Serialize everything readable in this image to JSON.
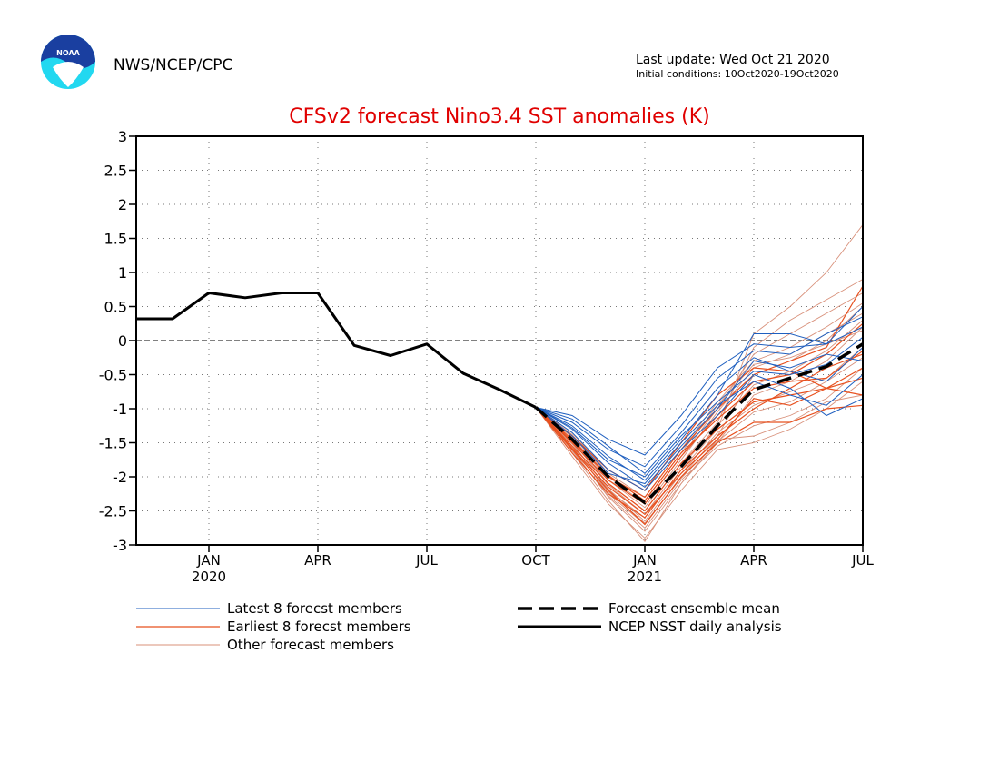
{
  "header": {
    "agency": "NWS/NCEP/CPC",
    "logo_text": "NOAA",
    "last_update": "Last update: Wed Oct 21 2020",
    "initial_conditions": "Initial conditions: 10Oct2020-19Oct2020"
  },
  "colors": {
    "title": "#e00000",
    "latest": "#1f5fbf",
    "earliest": "#e8501e",
    "other": "#d8907a",
    "observed": "#000000",
    "logo_blue": "#1a3fa0",
    "logo_cyan": "#22d8f0"
  },
  "chart_data": {
    "type": "line",
    "title": "CFSv2 forecast Nino3.4 SST anomalies (K)",
    "ylim": [
      -3,
      3
    ],
    "yticks": [
      3,
      2.5,
      2,
      1.5,
      1,
      0.5,
      0,
      -0.5,
      -1,
      -1.5,
      -2,
      -2.5,
      -3
    ],
    "ytick_labels": [
      "3",
      "2.5",
      "2",
      "1.5",
      "1",
      "0.5",
      "0",
      "-0.5",
      "-1",
      "-1.5",
      "-2",
      "-2.5",
      "-3"
    ],
    "xlim": [
      "2019-11",
      "2021-07"
    ],
    "x_tick_labels": [
      {
        "month": "2020-01",
        "label": "JAN",
        "year": "2020"
      },
      {
        "month": "2020-04",
        "label": "APR",
        "year": ""
      },
      {
        "month": "2020-07",
        "label": "JUL",
        "year": ""
      },
      {
        "month": "2020-10",
        "label": "OCT",
        "year": ""
      },
      {
        "month": "2021-01",
        "label": "JAN",
        "year": "2021"
      },
      {
        "month": "2021-04",
        "label": "APR",
        "year": ""
      },
      {
        "month": "2021-07",
        "label": "JUL",
        "year": ""
      }
    ],
    "grid": true,
    "zero_line": true,
    "legend": [
      {
        "label": "Latest 8 forecst members",
        "style": "latest"
      },
      {
        "label": "Earliest 8 forecst members",
        "style": "earliest"
      },
      {
        "label": "Other forecast members",
        "style": "other"
      },
      {
        "label": "Forecast ensemble mean",
        "style": "mean"
      },
      {
        "label": "NCEP NSST daily analysis",
        "style": "observed"
      }
    ],
    "forecast_months": [
      "2020-10",
      "2020-11",
      "2020-12",
      "2021-01",
      "2021-02",
      "2021-03",
      "2021-04",
      "2021-05",
      "2021-06",
      "2021-07"
    ],
    "series": [
      {
        "name": "NCEP NSST daily analysis",
        "group": "observed",
        "x": [
          "2019-11",
          "2019-12",
          "2020-01",
          "2020-02",
          "2020-03",
          "2020-04",
          "2020-05",
          "2020-06",
          "2020-07",
          "2020-08",
          "2020-09",
          "2020-10"
        ],
        "values": [
          0.32,
          0.32,
          0.7,
          0.63,
          0.7,
          0.7,
          -0.07,
          -0.22,
          -0.05,
          -0.48,
          -0.72,
          -0.98
        ]
      },
      {
        "name": "Forecast ensemble mean",
        "group": "mean",
        "values": [
          -0.98,
          -1.45,
          -2.0,
          -2.38,
          -1.85,
          -1.25,
          -0.72,
          -0.55,
          -0.38,
          -0.05
        ]
      },
      {
        "group": "latest",
        "values": [
          -0.98,
          -1.1,
          -1.45,
          -1.68,
          -1.1,
          -0.4,
          -0.05,
          -0.1,
          -0.05,
          0.5
        ]
      },
      {
        "group": "latest",
        "values": [
          -0.98,
          -1.2,
          -1.6,
          -1.85,
          -1.25,
          -0.55,
          -0.15,
          -0.2,
          0.1,
          0.35
        ]
      },
      {
        "group": "latest",
        "values": [
          -0.98,
          -1.25,
          -1.7,
          -2.05,
          -1.45,
          -0.8,
          0.1,
          0.1,
          -0.05,
          0.2
        ]
      },
      {
        "group": "latest",
        "values": [
          -0.98,
          -1.3,
          -1.8,
          -2.15,
          -1.55,
          -1.0,
          -0.3,
          -0.4,
          -0.2,
          -0.3
        ]
      },
      {
        "group": "latest",
        "values": [
          -0.98,
          -1.35,
          -1.9,
          -2.2,
          -1.6,
          -1.1,
          -0.5,
          -0.7,
          -1.1,
          -0.85
        ]
      },
      {
        "group": "latest",
        "values": [
          -0.98,
          -1.15,
          -1.55,
          -1.95,
          -1.35,
          -0.7,
          -0.25,
          -0.45,
          -0.6,
          -0.1
        ]
      },
      {
        "group": "latest",
        "values": [
          -0.98,
          -1.4,
          -1.95,
          -2.1,
          -1.5,
          -0.95,
          -0.6,
          -0.8,
          -0.95,
          -0.5
        ]
      },
      {
        "group": "latest",
        "values": [
          -0.98,
          -1.28,
          -1.75,
          -2.0,
          -1.4,
          -0.9,
          -0.45,
          -0.5,
          -0.35,
          0.05
        ]
      },
      {
        "group": "earliest",
        "values": [
          -0.98,
          -1.6,
          -2.2,
          -2.7,
          -2.0,
          -1.5,
          -1.2,
          -1.2,
          -1.0,
          -0.95
        ]
      },
      {
        "group": "earliest",
        "values": [
          -0.98,
          -1.55,
          -2.1,
          -2.5,
          -1.8,
          -1.3,
          -0.9,
          -0.8,
          -0.7,
          -0.8
        ]
      },
      {
        "group": "earliest",
        "values": [
          -0.98,
          -1.5,
          -2.05,
          -2.4,
          -1.7,
          -1.1,
          -0.6,
          -0.5,
          -0.2,
          0.25
        ]
      },
      {
        "group": "earliest",
        "values": [
          -0.98,
          -1.45,
          -2.0,
          -2.3,
          -1.6,
          -1.0,
          -0.5,
          -0.3,
          -0.1,
          0.8
        ]
      },
      {
        "group": "earliest",
        "values": [
          -0.98,
          -1.65,
          -2.25,
          -2.6,
          -1.9,
          -1.4,
          -1.0,
          -0.7,
          -0.4,
          -0.2
        ]
      },
      {
        "group": "earliest",
        "values": [
          -0.98,
          -1.4,
          -1.9,
          -2.2,
          -1.5,
          -0.8,
          -0.4,
          -0.45,
          -0.7,
          -0.55
        ]
      },
      {
        "group": "earliest",
        "values": [
          -0.98,
          -1.58,
          -2.15,
          -2.55,
          -1.95,
          -1.45,
          -0.85,
          -0.95,
          -0.7,
          -0.4
        ]
      },
      {
        "group": "earliest",
        "values": [
          -0.98,
          -1.48,
          -1.98,
          -2.35,
          -1.65,
          -1.15,
          -0.7,
          -0.6,
          -0.55,
          -0.15
        ]
      },
      {
        "group": "other",
        "values": [
          -0.98,
          -1.7,
          -2.4,
          -2.9,
          -2.2,
          -1.6,
          -1.5,
          -1.3,
          -1.0,
          -0.6
        ]
      },
      {
        "group": "other",
        "values": [
          -0.98,
          -1.65,
          -2.35,
          -2.95,
          -2.1,
          -1.45,
          -1.4,
          -1.2,
          -0.9,
          -0.8
        ]
      },
      {
        "group": "other",
        "values": [
          -0.98,
          -1.5,
          -2.2,
          -2.6,
          -1.9,
          -1.3,
          0.1,
          0.5,
          1.0,
          1.7
        ]
      },
      {
        "group": "other",
        "values": [
          -0.98,
          -1.45,
          -2.1,
          -2.5,
          -1.8,
          -1.2,
          -0.1,
          0.3,
          0.6,
          0.9
        ]
      },
      {
        "group": "other",
        "values": [
          -0.98,
          -1.4,
          -2.0,
          -2.4,
          -1.7,
          -1.0,
          -0.2,
          0.1,
          0.4,
          0.7
        ]
      },
      {
        "group": "other",
        "values": [
          -0.98,
          -1.55,
          -2.25,
          -2.7,
          -2.0,
          -1.4,
          -0.5,
          -0.3,
          0.0,
          0.5
        ]
      },
      {
        "group": "other",
        "values": [
          -0.98,
          -1.6,
          -2.3,
          -2.8,
          -2.1,
          -1.5,
          -0.8,
          -0.6,
          -0.3,
          0.2
        ]
      },
      {
        "group": "other",
        "values": [
          -0.98,
          -1.35,
          -1.95,
          -2.3,
          -1.6,
          -0.9,
          -0.3,
          -0.1,
          0.2,
          0.55
        ]
      },
      {
        "group": "other",
        "values": [
          -0.98,
          -1.62,
          -2.28,
          -2.75,
          -2.05,
          -1.55,
          -1.25,
          -1.1,
          -0.85,
          -0.4
        ]
      },
      {
        "group": "other",
        "values": [
          -0.98,
          -1.48,
          -2.12,
          -2.55,
          -1.85,
          -1.25,
          -0.65,
          -0.45,
          -0.15,
          0.3
        ]
      },
      {
        "group": "other",
        "values": [
          -0.98,
          -1.52,
          -2.18,
          -2.65,
          -1.95,
          -1.35,
          -0.95,
          -0.75,
          -0.55,
          -0.1
        ]
      },
      {
        "group": "other",
        "values": [
          -0.98,
          -1.42,
          -2.05,
          -2.45,
          -1.75,
          -1.05,
          -0.4,
          -0.2,
          0.1,
          0.4
        ]
      },
      {
        "group": "other",
        "values": [
          -0.98,
          -1.58,
          -2.22,
          -2.68,
          -2.02,
          -1.48,
          -1.05,
          -0.9,
          -0.6,
          -0.25
        ]
      },
      {
        "group": "other",
        "values": [
          -0.98,
          -1.38,
          -1.98,
          -2.35,
          -1.65,
          -0.95,
          -0.35,
          -0.25,
          -0.05,
          0.15
        ]
      }
    ]
  }
}
